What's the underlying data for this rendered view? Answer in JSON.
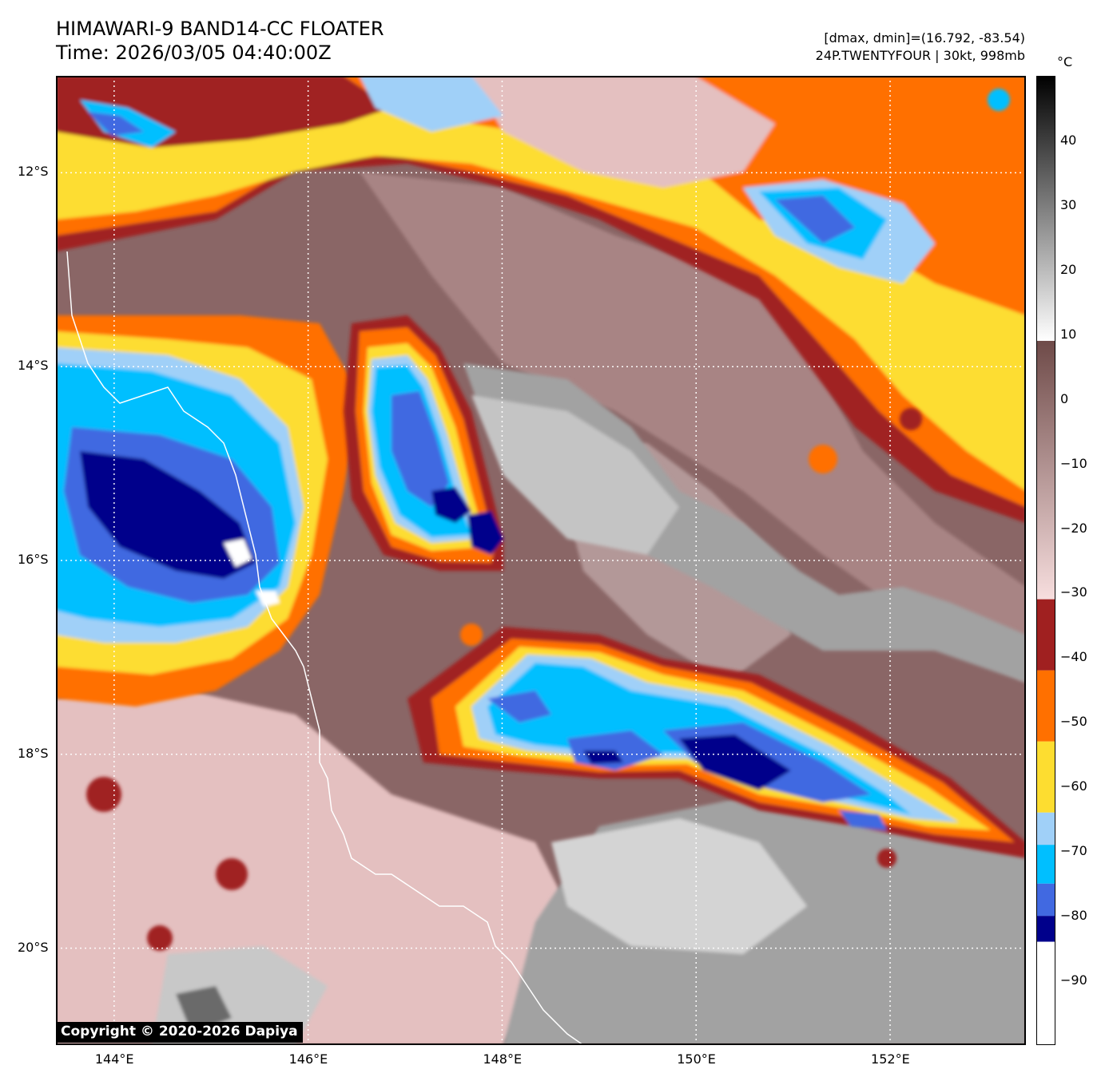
{
  "header": {
    "title_line1": "HIMAWARI-9 BAND14-CC FLOATER",
    "title_line2": "Time: 2026/03/05 04:40:00Z",
    "range_text": "[dmax, dmin]=(16.792, -83.54)",
    "storm_text": "24P.TWENTYFOUR | 30kt, 998mb"
  },
  "map": {
    "lon_range": [
      143.4,
      153.4
    ],
    "lat_range": [
      -21.0,
      -11.0
    ],
    "lon_ticks": [
      {
        "value": 144,
        "label": "144°E"
      },
      {
        "value": 146,
        "label": "146°E"
      },
      {
        "value": 148,
        "label": "148°E"
      },
      {
        "value": 150,
        "label": "150°E"
      },
      {
        "value": 152,
        "label": "152°E"
      }
    ],
    "lat_ticks": [
      {
        "value": -12,
        "label": "12°S"
      },
      {
        "value": -14,
        "label": "14°S"
      },
      {
        "value": -16,
        "label": "16°S"
      },
      {
        "value": -18,
        "label": "18°S"
      },
      {
        "value": -20,
        "label": "20°S"
      }
    ],
    "gridlines": true,
    "copyright": "Copyright © 2020-2026 Dapiya"
  },
  "colorbar": {
    "unit": "°C",
    "range": [
      -100,
      50
    ],
    "ticks": [
      {
        "value": 40,
        "label": "40"
      },
      {
        "value": 30,
        "label": "30"
      },
      {
        "value": 20,
        "label": "20"
      },
      {
        "value": 10,
        "label": "10"
      },
      {
        "value": 0,
        "label": "0"
      },
      {
        "value": -10,
        "label": "−10"
      },
      {
        "value": -20,
        "label": "−20"
      },
      {
        "value": -30,
        "label": "−30"
      },
      {
        "value": -40,
        "label": "−40"
      },
      {
        "value": -50,
        "label": "−50"
      },
      {
        "value": -60,
        "label": "−60"
      },
      {
        "value": -70,
        "label": "−70"
      },
      {
        "value": -80,
        "label": "−80"
      },
      {
        "value": -90,
        "label": "−90"
      }
    ],
    "bands": [
      {
        "from": -100,
        "to": -84,
        "color": "#ffffff"
      },
      {
        "from": -84,
        "to": -80,
        "color": "#00008b"
      },
      {
        "from": -80,
        "to": -75,
        "color": "#4169e1"
      },
      {
        "from": -75,
        "to": -69,
        "color": "#00bfff"
      },
      {
        "from": -69,
        "to": -64,
        "color": "#a0d0f8"
      },
      {
        "from": -64,
        "to": -53,
        "color": "#fddd30"
      },
      {
        "from": -53,
        "to": -42,
        "color": "#ff7000"
      },
      {
        "from": -42,
        "to": -31,
        "color": "#a02020"
      },
      {
        "from": -31,
        "to": 9,
        "gradient": [
          "#f7dede",
          "#6e4a48"
        ]
      },
      {
        "from": 9,
        "to": 50,
        "gradient": [
          "#ffffff",
          "#000000"
        ]
      }
    ]
  },
  "colors": {
    "cold_ring": "#00008b",
    "royal": "#4169e1",
    "sky": "#00bfff",
    "pale_blue": "#a0d0f8",
    "yellow": "#fddd30",
    "orange": "#ff7000",
    "dark_red": "#a02020",
    "pink": "#e8c4c4",
    "mauve": "#9a7878",
    "brown": "#7a5656",
    "gray": "#9c9c9c",
    "light_gray": "#c8c8c8"
  }
}
